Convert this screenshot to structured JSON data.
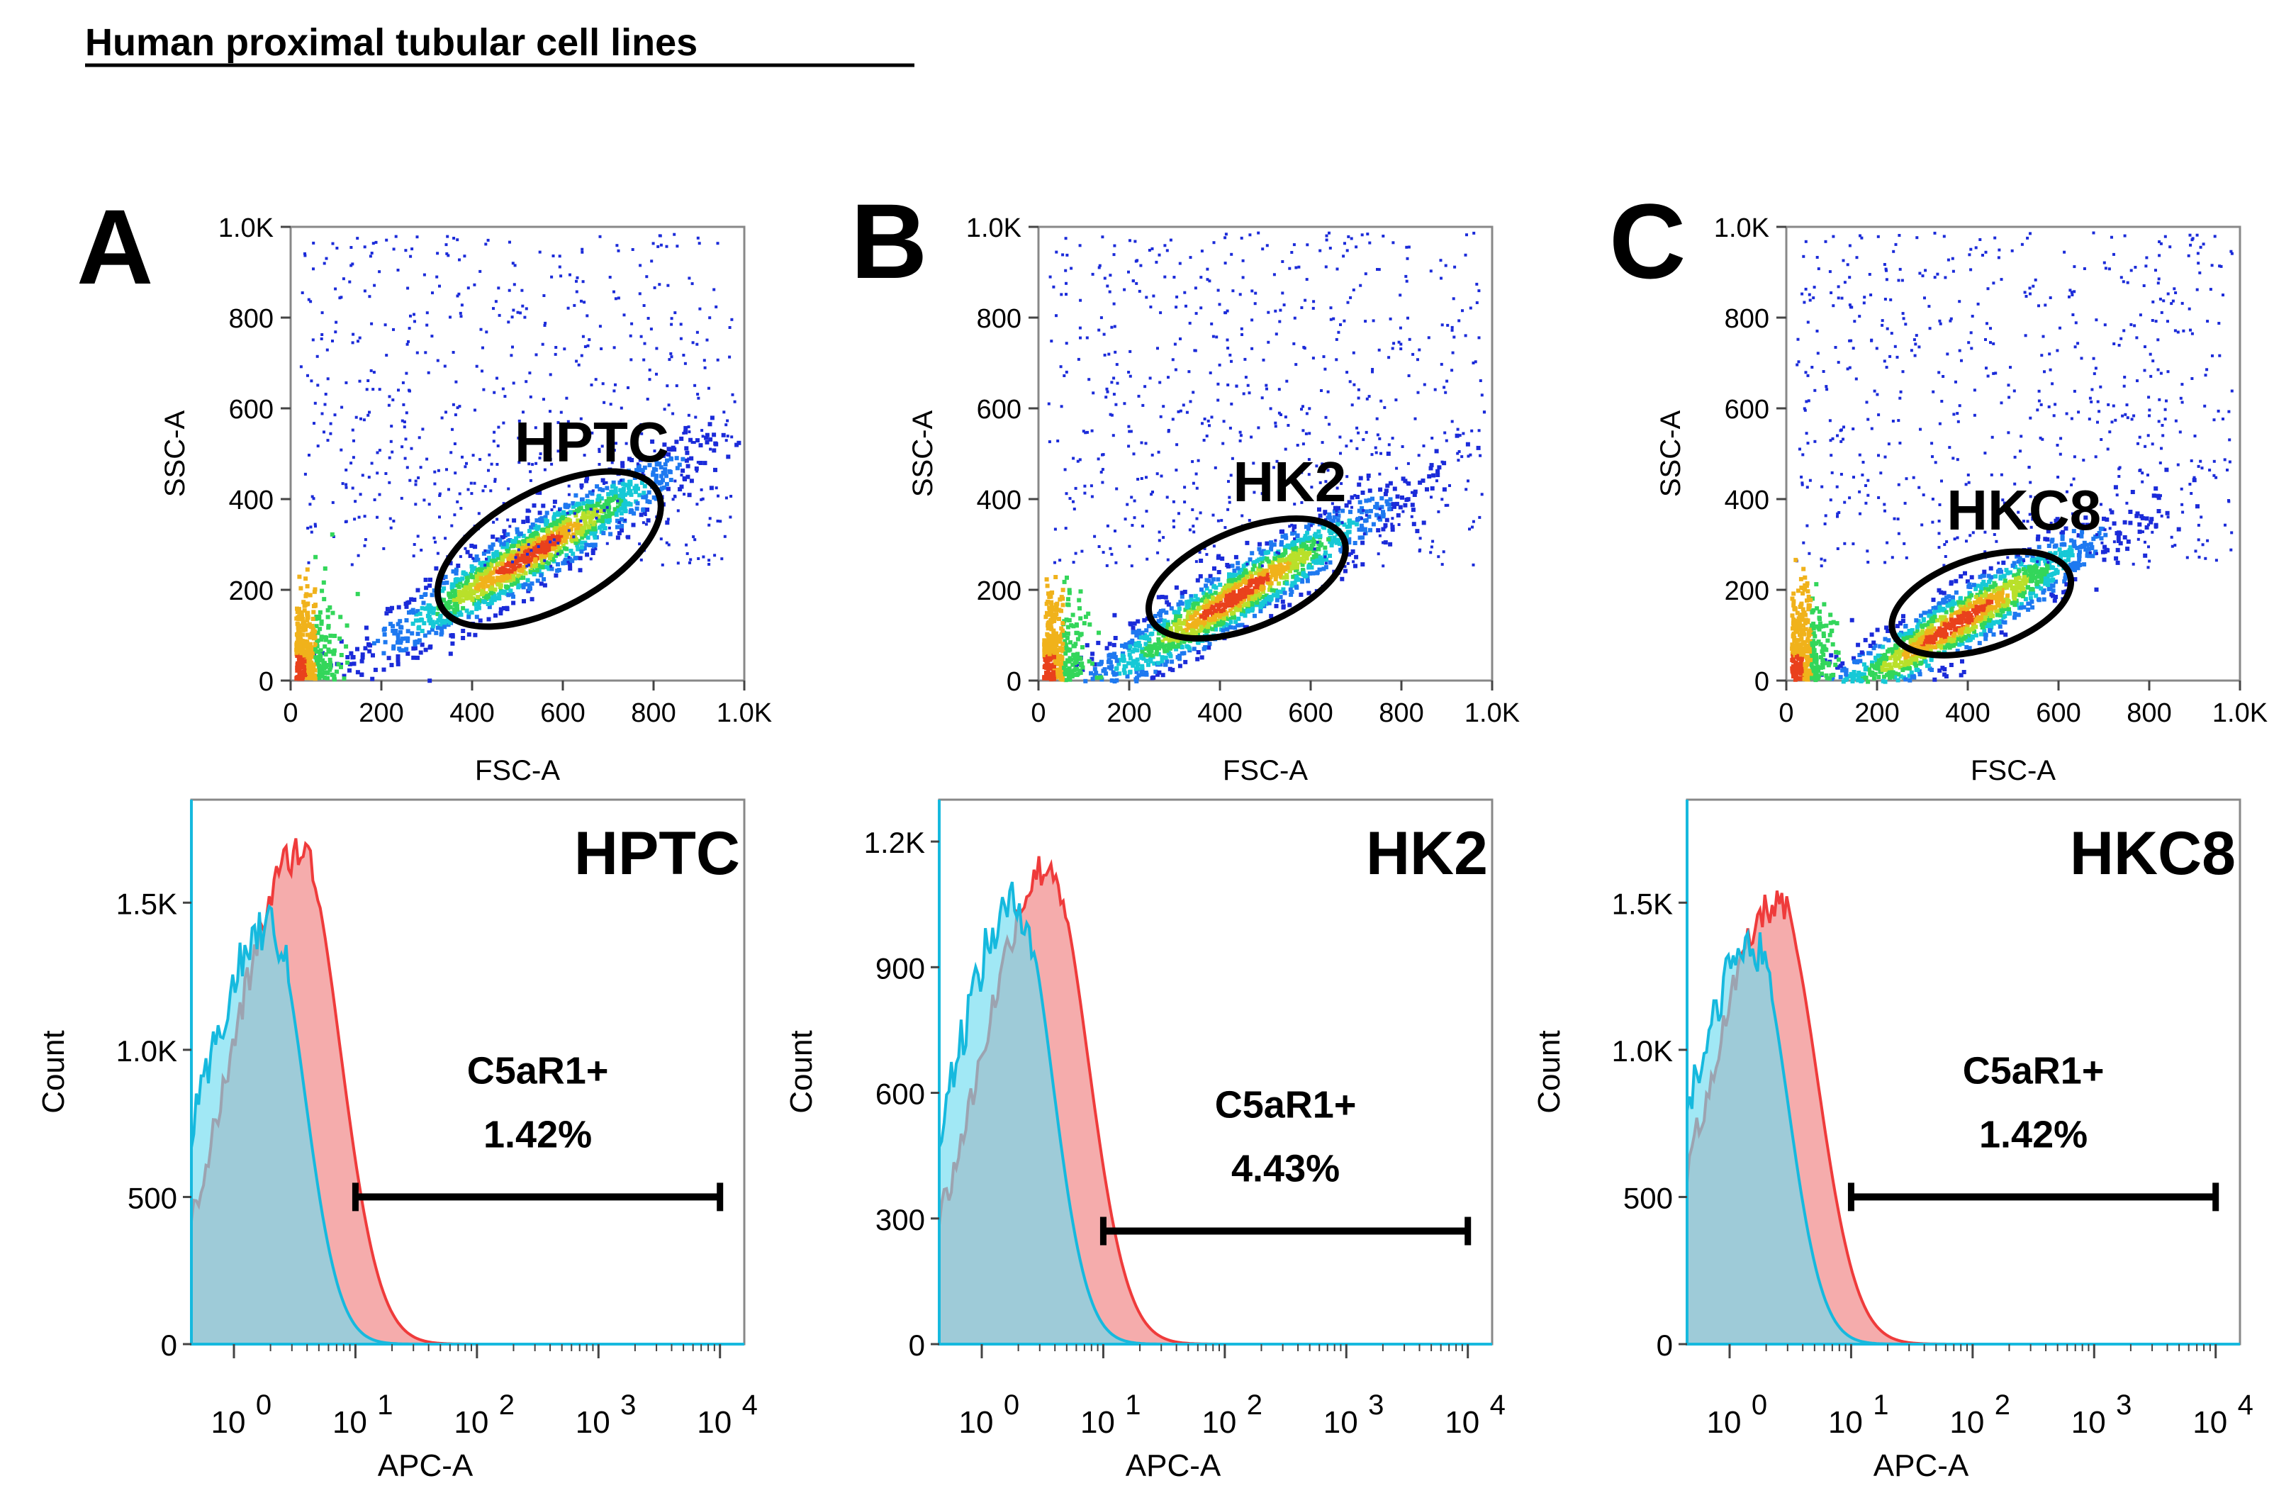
{
  "figure_title": "Human proximal tubular cell lines",
  "colors": {
    "isotype_fill": "#6fdcef",
    "isotype_line": "#16b9de",
    "stained_fill": "#f4a3a3",
    "stained_line": "#ef3b3b",
    "overlap_fill": "#5b96ad",
    "gate": "#000000",
    "density_scale": [
      "#1b2bd9",
      "#1e79f0",
      "#16c9d6",
      "#33d65a",
      "#b9e02a",
      "#f0b21b",
      "#e9411c"
    ]
  },
  "panels": [
    {
      "label": "A",
      "cell_line": "HPTC",
      "scatter": {
        "type": "density_scatter",
        "xlabel": "FSC-A",
        "ylabel": "SSC-A",
        "xlim": [
          0,
          1000
        ],
        "ylim": [
          0,
          1000
        ],
        "xticks": [
          "0",
          "200",
          "400",
          "600",
          "800",
          "1.0K"
        ],
        "yticks": [
          "0",
          "200",
          "400",
          "600",
          "800",
          "1.0K"
        ],
        "population_center": [
          520,
          280
        ],
        "gate": {
          "label": "HPTC",
          "center": [
            570,
            290
          ],
          "rx": 270,
          "ry": 130,
          "angle_deg": 28
        }
      },
      "histogram": {
        "type": "area",
        "title": "HPTC",
        "xlabel": "APC-A",
        "ylabel": "Count",
        "x_scale": "log",
        "xticks": [
          "10^0",
          "10^1",
          "10^2",
          "10^3",
          "10^4"
        ],
        "yticks": [
          "0",
          "500",
          "1.0K",
          "1.5K"
        ],
        "ylim": [
          0,
          1850
        ],
        "series": [
          {
            "peak_log": 0.3,
            "peak_count": 1420
          },
          {
            "peak_log": 0.55,
            "peak_count": 1680
          }
        ],
        "gate": {
          "label": "C5aR1+",
          "percent": "1.42%",
          "start": 10,
          "end": 10000,
          "y": 500
        }
      }
    },
    {
      "label": "B",
      "cell_line": "HK2",
      "scatter": {
        "type": "density_scatter",
        "xlabel": "FSC-A",
        "ylabel": "SSC-A",
        "xlim": [
          0,
          1000
        ],
        "ylim": [
          0,
          1000
        ],
        "xticks": [
          "0",
          "200",
          "400",
          "600",
          "800",
          "1.0K"
        ],
        "yticks": [
          "0",
          "200",
          "400",
          "600",
          "800",
          "1.0K"
        ],
        "population_center": [
          430,
          190
        ],
        "gate": {
          "label": "HK2",
          "center": [
            460,
            225
          ],
          "rx": 230,
          "ry": 108,
          "angle_deg": 22
        }
      },
      "histogram": {
        "type": "area",
        "title": "HK2",
        "xlabel": "APC-A",
        "ylabel": "Count",
        "x_scale": "log",
        "xticks": [
          "10^0",
          "10^1",
          "10^2",
          "10^3",
          "10^4"
        ],
        "yticks": [
          "0",
          "300",
          "600",
          "900",
          "1.2K"
        ],
        "ylim": [
          0,
          1300
        ],
        "series": [
          {
            "peak_log": 0.3,
            "peak_count": 1050
          },
          {
            "peak_log": 0.55,
            "peak_count": 1140
          }
        ],
        "gate": {
          "label": "C5aR1+",
          "percent": "4.43%",
          "start": 10,
          "end": 10000,
          "y": 270
        }
      }
    },
    {
      "label": "C",
      "cell_line": "HKC8",
      "scatter": {
        "type": "density_scatter",
        "xlabel": "FSC-A",
        "ylabel": "SSC-A",
        "xlim": [
          0,
          1000
        ],
        "ylim": [
          0,
          1000
        ],
        "xticks": [
          "0",
          "200",
          "400",
          "600",
          "800",
          "1.0K"
        ],
        "yticks": [
          "0",
          "200",
          "400",
          "600",
          "800",
          "1.0K"
        ],
        "population_center": [
          370,
          130
        ],
        "gate": {
          "label": "HKC8",
          "center": [
            430,
            170
          ],
          "rx": 205,
          "ry": 100,
          "angle_deg": 18
        }
      },
      "histogram": {
        "type": "area",
        "title": "HKC8",
        "xlabel": "APC-A",
        "ylabel": "Count",
        "x_scale": "log",
        "xticks": [
          "10^0",
          "10^1",
          "10^2",
          "10^3",
          "10^4"
        ],
        "yticks": [
          "0",
          "500",
          "1.0K",
          "1.5K"
        ],
        "ylim": [
          0,
          1850
        ],
        "series": [
          {
            "peak_log": 0.2,
            "peak_count": 1350
          },
          {
            "peak_log": 0.4,
            "peak_count": 1500
          }
        ],
        "gate": {
          "label": "C5aR1+",
          "percent": "1.42%",
          "start": 10,
          "end": 10000,
          "y": 500
        }
      }
    }
  ]
}
